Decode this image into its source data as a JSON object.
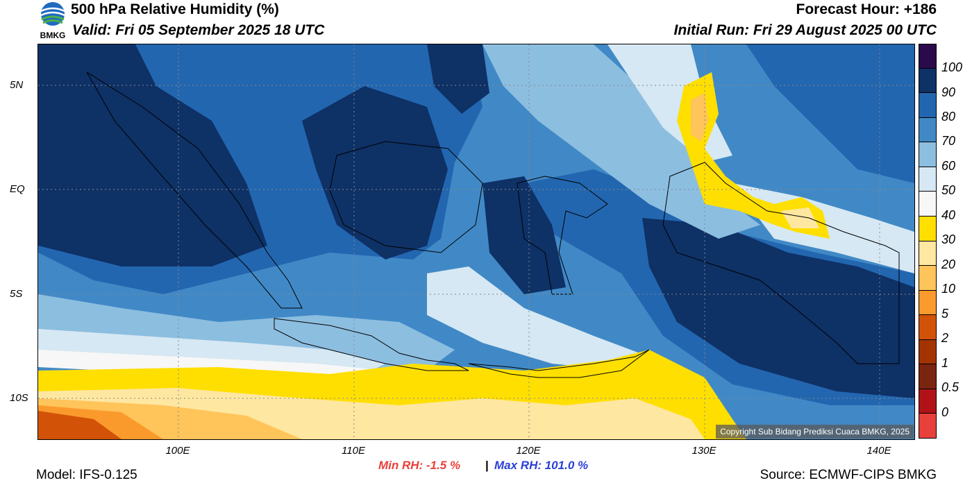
{
  "header": {
    "title": "500 hPa Relative Humidity (%)",
    "valid": "Valid: Fri 05 September 2025 18 UTC",
    "forecast_hour": "Forecast Hour: +186",
    "initial_run": "Initial Run: Fri 29 August 2025 00 UTC",
    "logo_text": "BMKG"
  },
  "map": {
    "lat_labels": [
      "5N",
      "EQ",
      "5S",
      "10S"
    ],
    "lon_labels": [
      "100E",
      "110E",
      "120E",
      "130E",
      "140E"
    ],
    "copyright": "Copyright Sub Bidang Prediksi Cuaca BMKG, 2025"
  },
  "colorbar": {
    "labels": [
      "100",
      "90",
      "80",
      "70",
      "60",
      "50",
      "40",
      "30",
      "20",
      "10",
      "5",
      "2",
      "1",
      "0.5",
      "0"
    ],
    "colors": [
      "#2a0a4a",
      "#0e3166",
      "#2366b0",
      "#4189c6",
      "#8cbee0",
      "#d6e8f3",
      "#f7f7f7",
      "#ffdf00",
      "#fee7a0",
      "#ffc45a",
      "#fb9a2c",
      "#d25207",
      "#a33300",
      "#7a2510",
      "#b01217",
      "#e8403a"
    ]
  },
  "stats": {
    "min_rh": "Min RH:  -1.5 %",
    "separator": "|",
    "max_rh": "Max RH: 101.0 %"
  },
  "footer": {
    "model": "Model: IFS-0.125",
    "source": "Source: ECMWF-CIPS BMKG"
  }
}
